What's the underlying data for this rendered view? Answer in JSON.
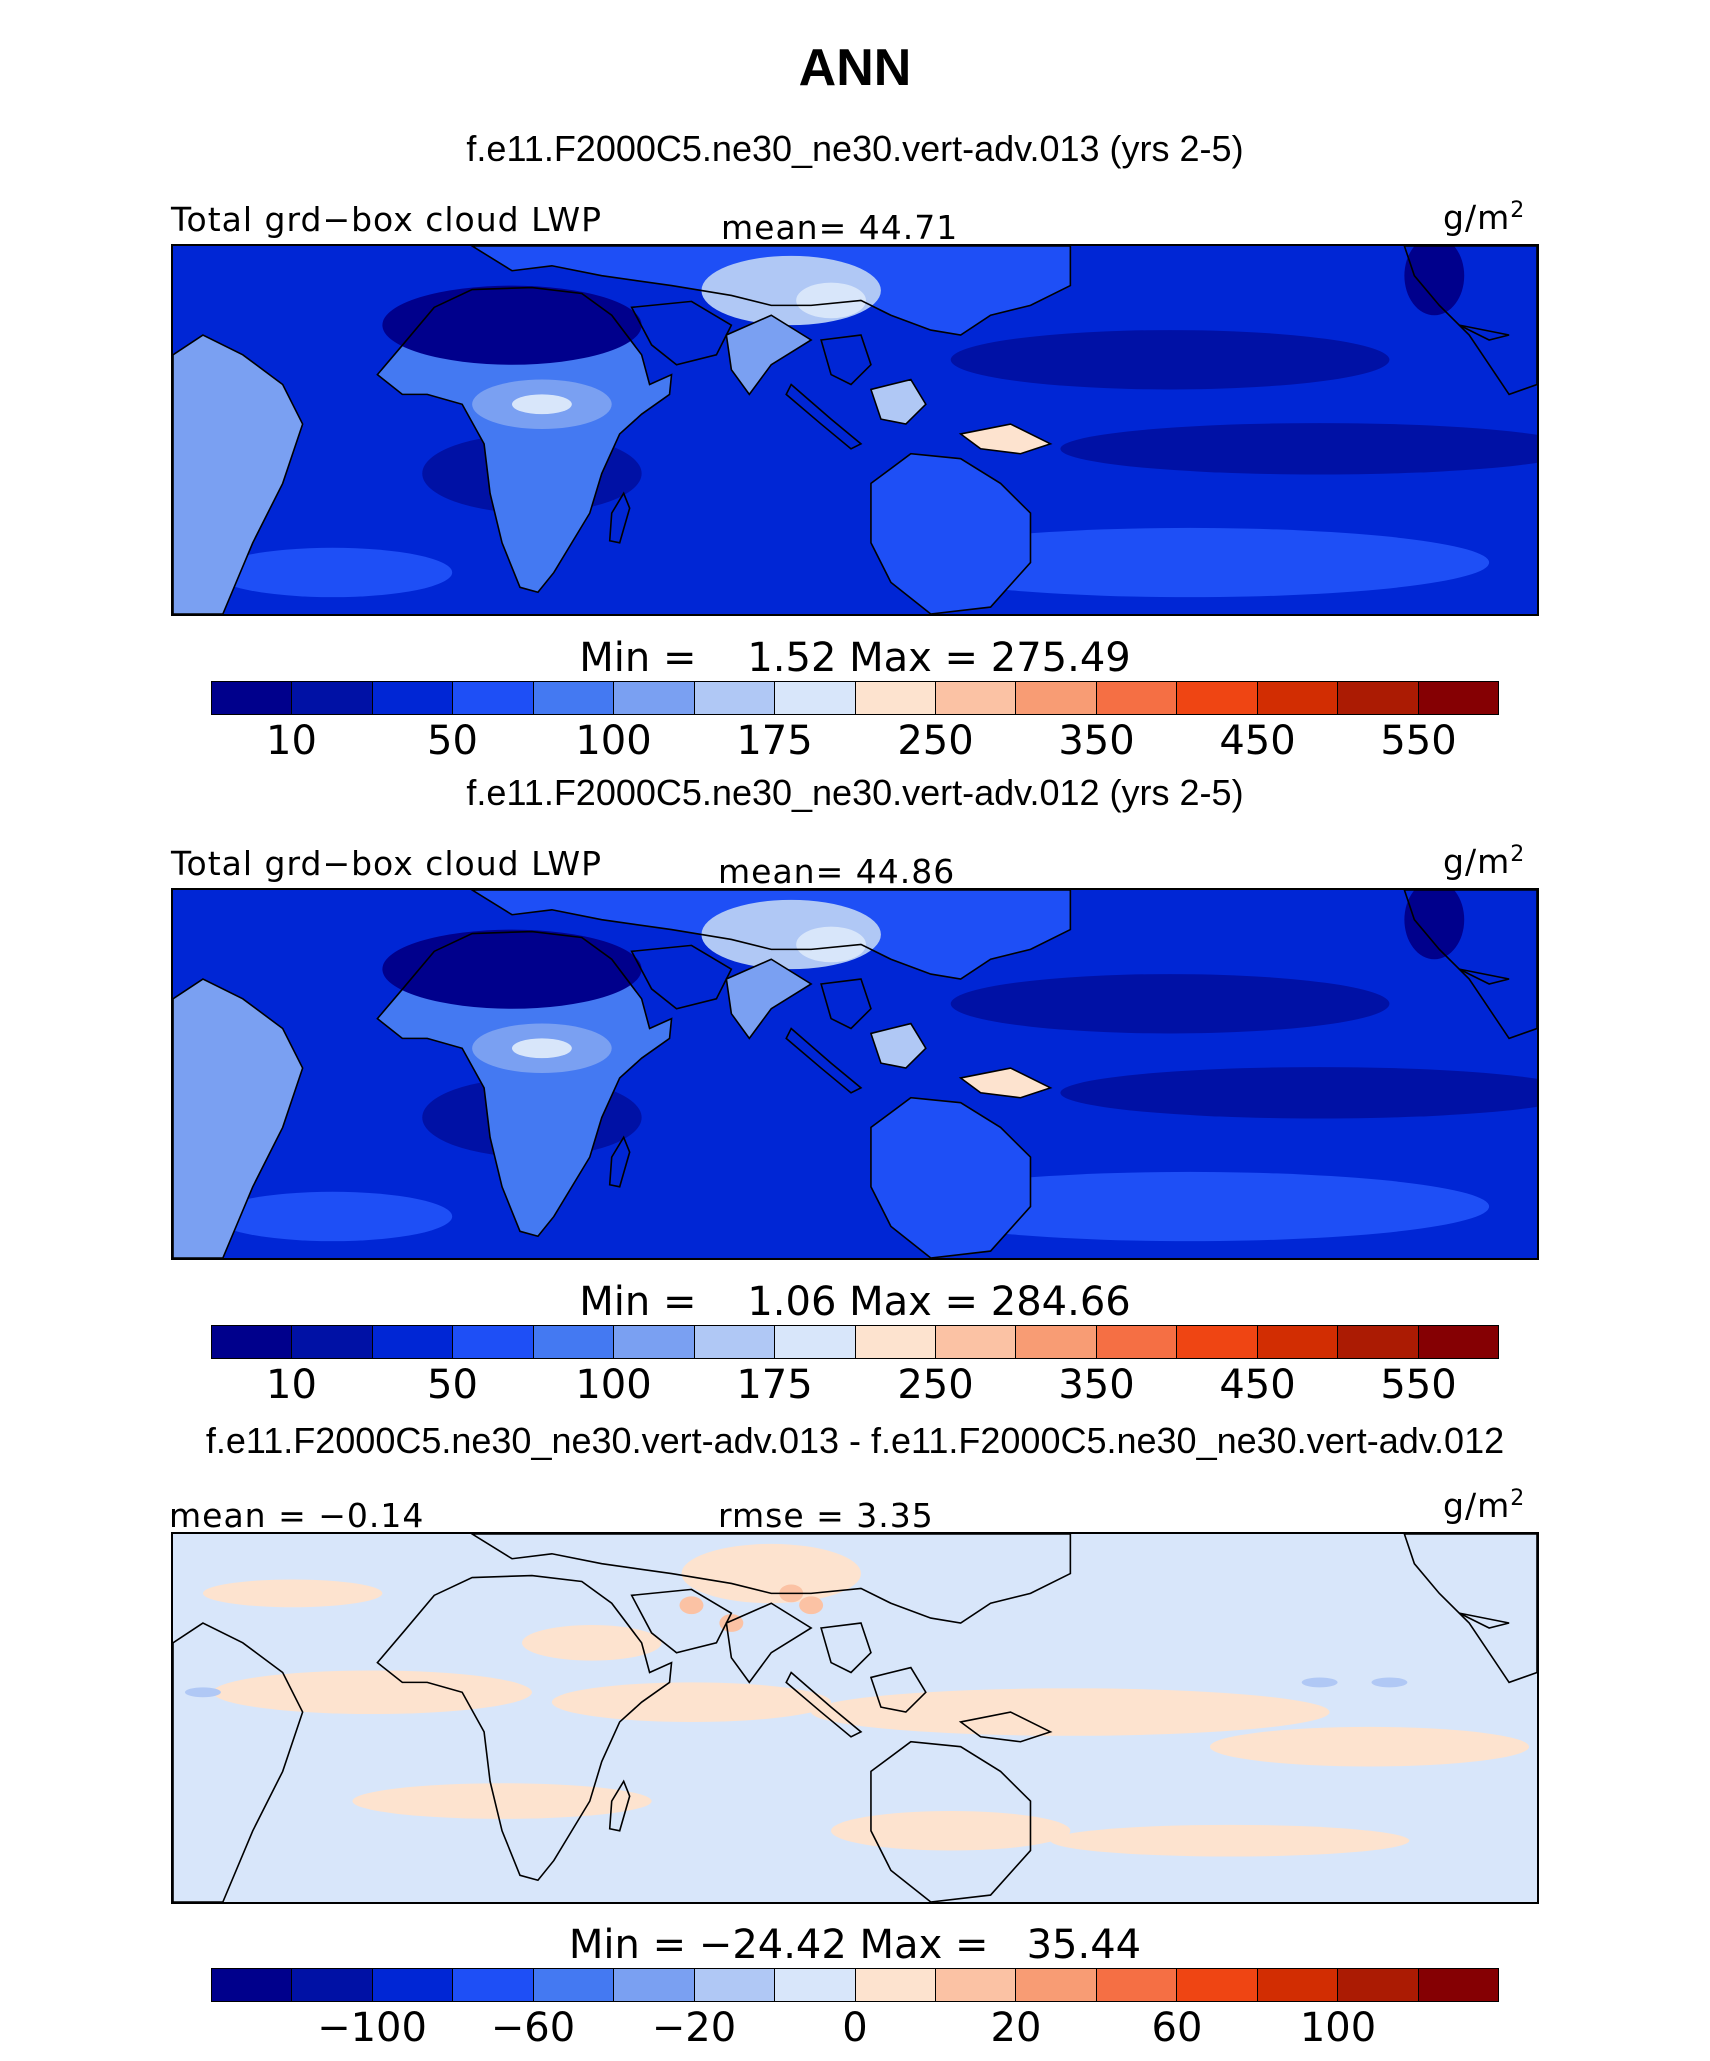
{
  "title": "ANN",
  "units": "g/m",
  "units_sup": "2",
  "colors": [
    "#00008c",
    "#0011a5",
    "#0026d5",
    "#1e4ff6",
    "#4479f2",
    "#7aa0f2",
    "#b0c8f5",
    "#d8e6fa",
    "#fde3cf",
    "#fbc2a4",
    "#f89c74",
    "#f56f44",
    "#ef4513",
    "#d22d02",
    "#ab1b03",
    "#850003"
  ],
  "panels": [
    {
      "case_title": "f.e11.F2000C5.ne30_ne30.vert-adv.013 (yrs 2-5)",
      "left_label": "Total grd−box cloud LWP",
      "stat_label": "mean=  44.71",
      "minmax": "Min =    1.52 Max = 275.49",
      "ticks": [
        "10",
        "50",
        "100",
        "175",
        "250",
        "350",
        "450",
        "550"
      ]
    },
    {
      "case_title": "f.e11.F2000C5.ne30_ne30.vert-adv.012 (yrs 2-5)",
      "left_label": "Total grd−box cloud LWP",
      "stat_label": "mean=  44.86",
      "minmax": "Min =    1.06 Max = 284.66",
      "ticks": [
        "10",
        "50",
        "100",
        "175",
        "250",
        "350",
        "450",
        "550"
      ]
    },
    {
      "case_title": "f.e11.F2000C5.ne30_ne30.vert-adv.013 - f.e11.F2000C5.ne30_ne30.vert-adv.012",
      "left_label": "mean =  −0.14",
      "stat_label": "rmse =    3.35",
      "minmax": "Min = −24.42 Max =   35.44",
      "ticks": [
        "−100",
        "−60",
        "−20",
        "0",
        "20",
        "60",
        "100"
      ]
    }
  ],
  "chart_data": [
    {
      "type": "heatmap",
      "title": "f.e11.F2000C5.ne30_ne30.vert-adv.013 (yrs 2-5)",
      "variable": "Total grd−box cloud LWP",
      "units": "g/m2",
      "mean": 44.71,
      "min": 1.52,
      "max": 275.49,
      "colorbar_levels": [
        5,
        10,
        25,
        50,
        75,
        100,
        125,
        150,
        175,
        200,
        250,
        300,
        350,
        400,
        450,
        500,
        550,
        600
      ],
      "colorbar_tick_labels": [
        "10",
        "50",
        "100",
        "175",
        "250",
        "350",
        "450",
        "550"
      ]
    },
    {
      "type": "heatmap",
      "title": "f.e11.F2000C5.ne30_ne30.vert-adv.012 (yrs 2-5)",
      "variable": "Total grd−box cloud LWP",
      "units": "g/m2",
      "mean": 44.86,
      "min": 1.06,
      "max": 284.66,
      "colorbar_levels": [
        5,
        10,
        25,
        50,
        75,
        100,
        125,
        150,
        175,
        200,
        250,
        300,
        350,
        400,
        450,
        500,
        550,
        600
      ],
      "colorbar_tick_labels": [
        "10",
        "50",
        "100",
        "175",
        "250",
        "350",
        "450",
        "550"
      ]
    },
    {
      "type": "heatmap",
      "title": "f.e11.F2000C5.ne30_ne30.vert-adv.013 - f.e11.F2000C5.ne30_ne30.vert-adv.012",
      "units": "g/m2",
      "mean": -0.14,
      "rmse": 3.35,
      "min": -24.42,
      "max": 35.44,
      "colorbar_tick_labels": [
        "−100",
        "−60",
        "−20",
        "0",
        "20",
        "60",
        "100"
      ]
    }
  ]
}
